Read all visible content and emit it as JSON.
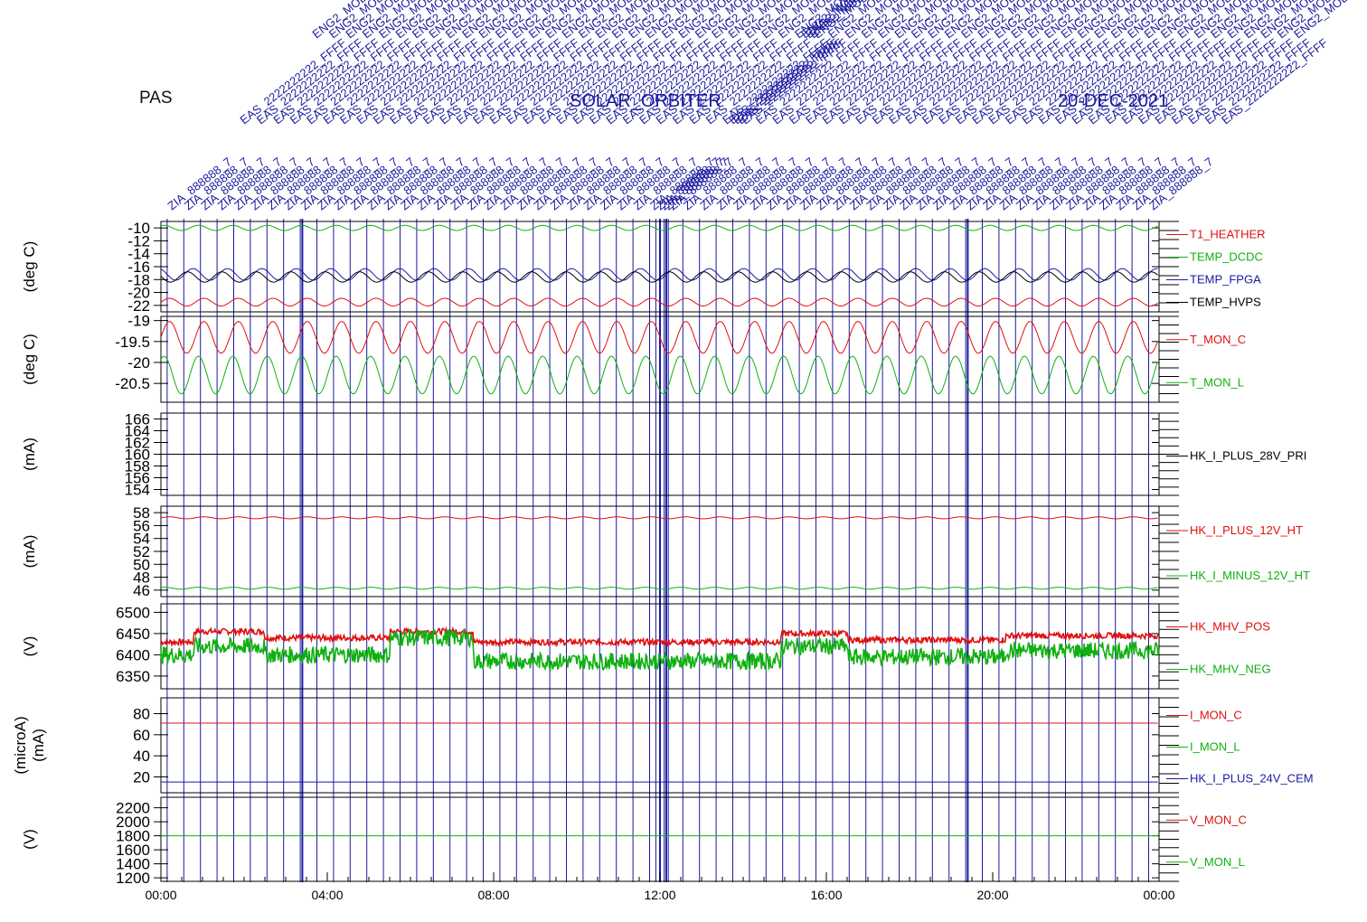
{
  "title": "PAS",
  "colors": {
    "red": "#e01010",
    "green": "#10b010",
    "blue": "#1a1aa0",
    "black": "#000000"
  },
  "time_axis": {
    "ticks": [
      "00:00",
      "04:00",
      "08:00",
      "12:00",
      "16:00",
      "20:00",
      "00:00"
    ],
    "range_hours": [
      0,
      24
    ]
  },
  "events": {
    "label_rows": [
      "ZIA_888888_7",
      "EAS_2222222222_FFFF",
      "ENG2_MODE"
    ],
    "center_labels": [
      "SOLAR_ORBITER",
      "20-DEC-2021"
    ],
    "marker_hours": [
      0.15,
      0.55,
      0.95,
      1.35,
      1.75,
      2.15,
      2.55,
      2.95,
      3.35,
      3.75,
      4.15,
      4.55,
      4.95,
      5.35,
      5.75,
      6.15,
      6.55,
      6.95,
      7.35,
      7.75,
      8.15,
      8.55,
      8.95,
      9.35,
      9.75,
      10.15,
      10.55,
      10.95,
      11.35,
      11.75,
      11.9,
      12.0,
      12.1,
      12.2,
      12.55,
      12.95,
      13.35,
      13.75,
      14.15,
      14.55,
      14.95,
      15.35,
      15.75,
      16.15,
      16.55,
      16.95,
      17.35,
      17.75,
      18.15,
      18.55,
      18.95,
      19.35,
      19.75,
      20.15,
      20.55,
      20.95,
      21.35,
      21.75,
      22.15,
      22.55,
      22.95,
      23.35,
      23.75
    ],
    "bold_marker_hours": [
      3.4,
      12.0,
      12.15,
      19.4
    ]
  },
  "chart_data": [
    {
      "type": "line",
      "ylabel": "(deg C)",
      "ylim": [
        -23,
        -9
      ],
      "yticks": [
        -10,
        -12,
        -14,
        -16,
        -18,
        -20,
        -22
      ],
      "series": [
        {
          "name": "T1_HEATHER",
          "color": "#e01010",
          "mean": -21.5,
          "amp": 0.6,
          "periods": 29
        },
        {
          "name": "TEMP_DCDC",
          "color": "#10b010",
          "mean": -10,
          "amp": 0.4,
          "periods": 29
        },
        {
          "name": "TEMP_FPGA",
          "color": "#1a1aa0",
          "mean": -17.2,
          "amp": 0.9,
          "periods": 29
        },
        {
          "name": "TEMP_HVPS",
          "color": "#000000",
          "mean": -17.6,
          "amp": 0.8,
          "periods": 29
        }
      ]
    },
    {
      "type": "line",
      "ylabel": "(deg C)",
      "ylim": [
        -20.95,
        -18.9
      ],
      "yticks": [
        -19.0,
        -19.5,
        -20.0,
        -20.5
      ],
      "series": [
        {
          "name": "T_MON_C",
          "color": "#e01010",
          "mean": -19.4,
          "amp": 0.38,
          "periods": 29
        },
        {
          "name": "T_MON_L",
          "color": "#10b010",
          "mean": -20.3,
          "amp": 0.45,
          "periods": 29
        }
      ]
    },
    {
      "type": "line",
      "ylabel": "(mA)",
      "ylim": [
        153,
        167
      ],
      "yticks": [
        154,
        156,
        158,
        160,
        162,
        164,
        166
      ],
      "series": [
        {
          "name": "HK_I_PLUS_28V_PRI",
          "color": "#000000",
          "mean": 160,
          "amp": 0.1,
          "periods": 0
        }
      ]
    },
    {
      "type": "line",
      "ylabel": "(mA)",
      "ylim": [
        45,
        59
      ],
      "yticks": [
        46,
        48,
        50,
        52,
        54,
        56,
        58
      ],
      "series": [
        {
          "name": "HK_I_PLUS_12V_HT",
          "color": "#e01010",
          "mean": 57.2,
          "amp": 0.15,
          "periods": 29
        },
        {
          "name": "HK_I_MINUS_12V_HT",
          "color": "#10b010",
          "mean": 46.3,
          "amp": 0.15,
          "periods": 29
        }
      ]
    },
    {
      "type": "line",
      "ylabel": "(V)",
      "ylim": [
        6320,
        6520
      ],
      "yticks": [
        6350,
        6400,
        6450,
        6500
      ],
      "series": [
        {
          "name": "HK_MHV_POS",
          "color": "#e01010",
          "levels": [
            [
              0,
              6430
            ],
            [
              0.8,
              6455
            ],
            [
              2.5,
              6440
            ],
            [
              5.5,
              6455
            ],
            [
              7.5,
              6430
            ],
            [
              14.9,
              6450
            ],
            [
              16.5,
              6435
            ],
            [
              20.3,
              6445
            ],
            [
              24,
              6430
            ]
          ]
        },
        {
          "name": "HK_MHV_NEG",
          "color": "#10b010",
          "levels": [
            [
              0,
              6400
            ],
            [
              0.8,
              6420
            ],
            [
              2.5,
              6400
            ],
            [
              5.5,
              6440
            ],
            [
              7.5,
              6385
            ],
            [
              14.9,
              6420
            ],
            [
              16.5,
              6395
            ],
            [
              20.3,
              6410
            ],
            [
              24,
              6395
            ]
          ]
        }
      ]
    },
    {
      "type": "line",
      "ylabel": "(microA)\n(mA)",
      "ylim": [
        5,
        95
      ],
      "yticks": [
        20,
        40,
        60,
        80
      ],
      "series": [
        {
          "name": "I_MON_C",
          "color": "#e01010",
          "mean": 71,
          "amp": 0.3,
          "periods": 0
        },
        {
          "name": "I_MON_L",
          "color": "#10b010",
          "mean": null,
          "amp": 0,
          "periods": 0
        },
        {
          "name": "HK_I_PLUS_24V_CEM",
          "color": "#1a1aa0",
          "mean": 15,
          "amp": 0.2,
          "periods": 0
        }
      ]
    },
    {
      "type": "line",
      "ylabel": "(V)",
      "ylim": [
        1150,
        2350
      ],
      "yticks": [
        1200,
        1400,
        1600,
        1800,
        2000,
        2200
      ],
      "series": [
        {
          "name": "V_MON_C",
          "color": "#e01010",
          "mean": null,
          "amp": 0,
          "periods": 0
        },
        {
          "name": "V_MON_L",
          "color": "#10b010",
          "mean": 1800,
          "amp": 0,
          "periods": 0
        }
      ]
    }
  ]
}
